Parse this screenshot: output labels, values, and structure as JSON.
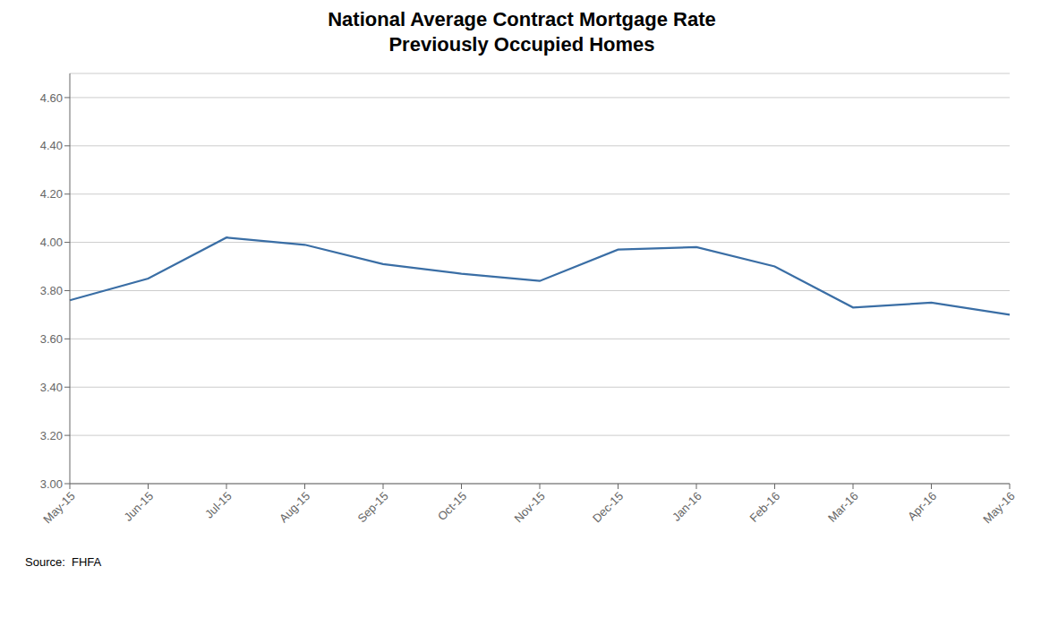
{
  "chart_data": {
    "type": "line",
    "title": "National Average Contract Mortgage Rate\nPreviously Occupied Homes",
    "annotations": [
      "Source:  FHFA"
    ],
    "categories": [
      "May-15",
      "Jun-15",
      "Jul-15",
      "Aug-15",
      "Sep-15",
      "Oct-15",
      "Nov-15",
      "Dec-15",
      "Jan-16",
      "Feb-16",
      "Mar-16",
      "Apr-16",
      "May-16"
    ],
    "values": [
      3.76,
      3.85,
      4.02,
      3.99,
      3.91,
      3.87,
      3.84,
      3.97,
      3.98,
      3.9,
      3.73,
      3.75,
      3.7
    ],
    "color": "#3A6EA5",
    "ylim": [
      3.0,
      4.7
    ],
    "yticks": [
      {
        "value": 3.0,
        "label": "3.00"
      },
      {
        "value": 3.2,
        "label": "3.20"
      },
      {
        "value": 3.4,
        "label": "3.40"
      },
      {
        "value": 3.6,
        "label": "3.60"
      },
      {
        "value": 3.8,
        "label": "3.80"
      },
      {
        "value": 4.0,
        "label": "4.00"
      },
      {
        "value": 4.2,
        "label": "4.20"
      },
      {
        "value": 4.4,
        "label": "4.40"
      },
      {
        "value": 4.6,
        "label": "4.60"
      }
    ],
    "grid": true
  }
}
